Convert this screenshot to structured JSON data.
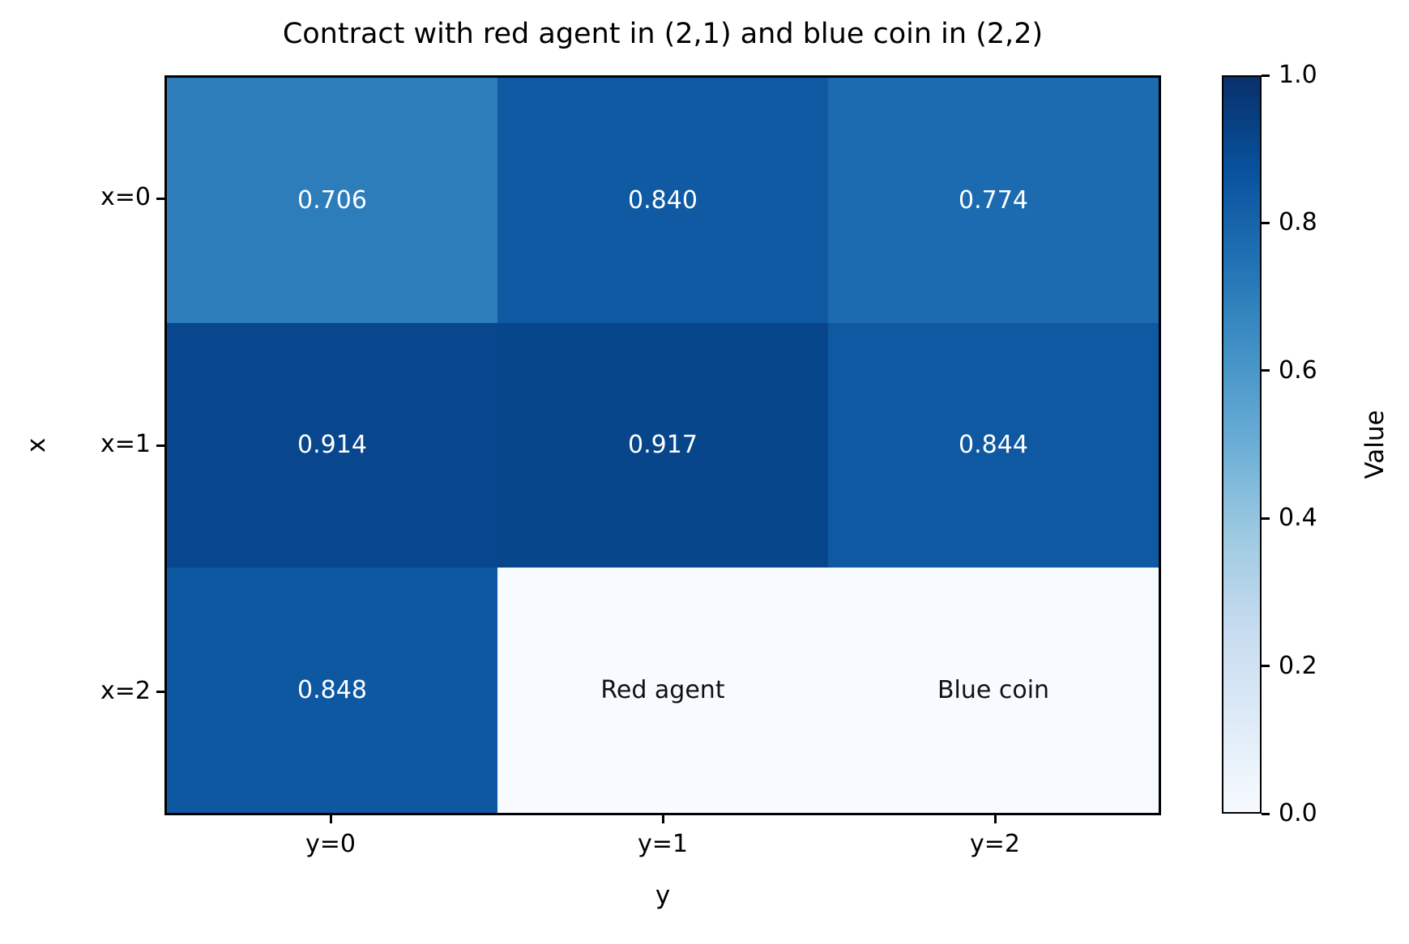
{
  "chart_data": {
    "type": "heatmap",
    "title": "Contract with red agent in (2,1) and blue coin in (2,2)",
    "xlabel": "y",
    "ylabel": "x",
    "x_ticklabels": [
      "y=0",
      "y=1",
      "y=2"
    ],
    "y_ticklabels": [
      "x=0",
      "x=1",
      "x=2"
    ],
    "rows": [
      {
        "cells": [
          {
            "label": "0.706",
            "value": 0.706,
            "bg": "#2d7dbb",
            "fg": "#ffffff"
          },
          {
            "label": "0.840",
            "value": 0.84,
            "bg": "#0f5aa3",
            "fg": "#ffffff"
          },
          {
            "label": "0.774",
            "value": 0.774,
            "bg": "#1c6bb0",
            "fg": "#ffffff"
          }
        ]
      },
      {
        "cells": [
          {
            "label": "0.914",
            "value": 0.914,
            "bg": "#08478d",
            "fg": "#ffffff"
          },
          {
            "label": "0.917",
            "value": 0.917,
            "bg": "#08468c",
            "fg": "#ffffff"
          },
          {
            "label": "0.844",
            "value": 0.844,
            "bg": "#0e59a2",
            "fg": "#ffffff"
          }
        ]
      },
      {
        "cells": [
          {
            "label": "0.848",
            "value": 0.848,
            "bg": "#0d58a1",
            "fg": "#ffffff"
          },
          {
            "label": "Red agent",
            "value": 0.0,
            "bg": "#f7fbff",
            "fg": "#111111"
          },
          {
            "label": "Blue coin",
            "value": 0.0,
            "bg": "#f7fbff",
            "fg": "#111111"
          }
        ]
      }
    ],
    "colorbar": {
      "label": "Value",
      "vmin": 0.0,
      "vmax": 1.0,
      "colormap": "Blues",
      "ticks": [
        {
          "label": "1.0",
          "value": 1.0
        },
        {
          "label": "0.8",
          "value": 0.8
        },
        {
          "label": "0.6",
          "value": 0.6
        },
        {
          "label": "0.4",
          "value": 0.4
        },
        {
          "label": "0.2",
          "value": 0.2
        },
        {
          "label": "0.0",
          "value": 0.0
        }
      ],
      "gradient_stops": [
        "#f7fbff",
        "#deebf7",
        "#c6dbef",
        "#9ecae1",
        "#6baed6",
        "#4292c6",
        "#2171b5",
        "#08519c",
        "#08306b"
      ]
    }
  }
}
